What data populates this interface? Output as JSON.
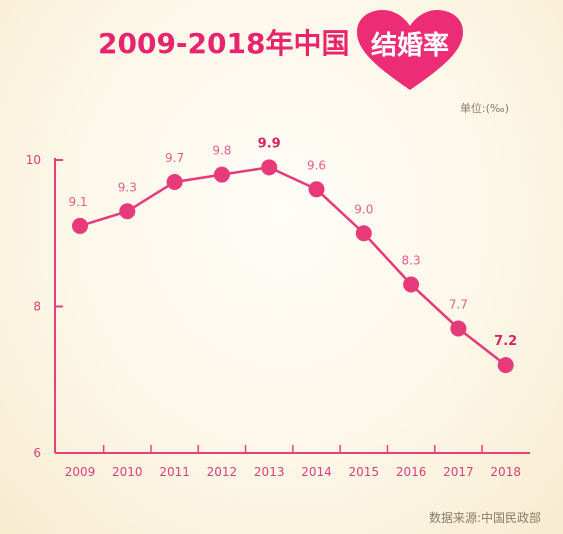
{
  "header": {
    "title": "2009-2018年中国",
    "title_highlight": "结婚率",
    "unit": "单位:(‰)",
    "source": "数据来源:中国民政部"
  },
  "colors": {
    "accent": "#e8246e",
    "line": "#e63a7a",
    "axis": "#e8407a"
  },
  "chart_data": {
    "type": "line",
    "title": "2009-2018年中国结婚率",
    "ylabel": "单位:(‰)",
    "xlabel": "",
    "categories": [
      "2009",
      "2010",
      "2011",
      "2012",
      "2013",
      "2014",
      "2015",
      "2016",
      "2017",
      "2018"
    ],
    "values": [
      9.1,
      9.3,
      9.7,
      9.8,
      9.9,
      9.6,
      9.0,
      8.3,
      7.7,
      7.2
    ],
    "data_labels": [
      "9.1",
      "9.3",
      "9.7",
      "9.8",
      "9.9",
      "9.6",
      "9.0",
      "8.3",
      "7.7",
      "7.2"
    ],
    "bold_labels": [
      "2013",
      "2018"
    ],
    "ylim": [
      6,
      10
    ],
    "yticks": [
      6,
      8,
      10
    ],
    "grid": false,
    "legend": "none"
  }
}
